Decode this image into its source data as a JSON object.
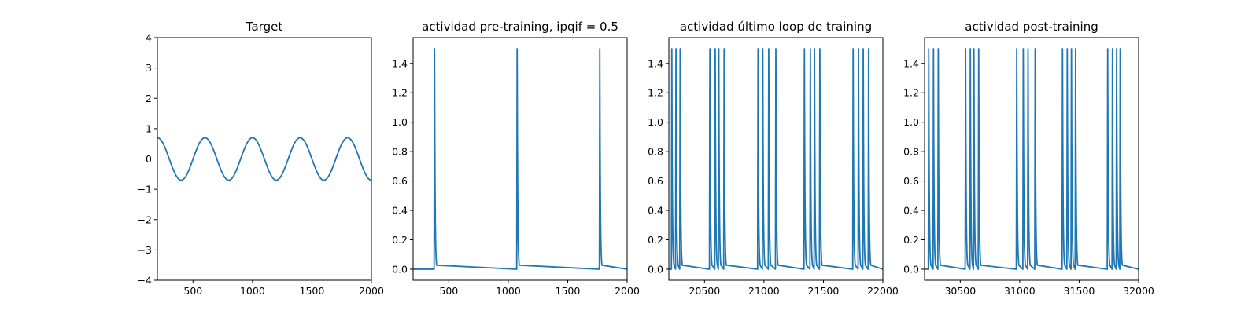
{
  "chart_data": [
    {
      "type": "line",
      "title": "Target",
      "xlim": [
        200,
        2000
      ],
      "ylim": [
        -4,
        4
      ],
      "xticks": [
        500,
        1000,
        1500,
        2000
      ],
      "yticks": [
        -4,
        -3,
        -2,
        -1,
        0,
        1,
        2,
        3,
        4
      ],
      "series": [
        {
          "kind": "cosine",
          "amplitude": 0.7,
          "period": 400,
          "peak_at": 200,
          "x_start": 200,
          "x_end": 2000
        }
      ]
    },
    {
      "type": "line",
      "title": "actividad pre-training, ipqif = 0.5",
      "xlim": [
        200,
        2000
      ],
      "ylim": [
        -0.075,
        1.575
      ],
      "xticks": [
        500,
        1000,
        1500,
        2000
      ],
      "yticks": [
        0.0,
        0.2,
        0.4,
        0.6,
        0.8,
        1.0,
        1.2,
        1.4
      ],
      "series": [
        {
          "kind": "spikes",
          "baseline": 0.0,
          "peak": 1.5,
          "spike_times": [
            380,
            1075,
            1770
          ]
        }
      ]
    },
    {
      "type": "line",
      "title": "actividad último loop de training",
      "xlim": [
        20200,
        22000
      ],
      "ylim": [
        -0.075,
        1.575
      ],
      "xticks": [
        20500,
        21000,
        21500,
        22000
      ],
      "yticks": [
        0.0,
        0.2,
        0.4,
        0.6,
        0.8,
        1.0,
        1.2,
        1.4
      ],
      "series": [
        {
          "kind": "spikes",
          "baseline": 0.0,
          "peak": 1.5,
          "spike_times": [
            20225,
            20260,
            20295,
            20545,
            20590,
            20620,
            20665,
            20950,
            20990,
            21040,
            21100,
            21340,
            21390,
            21425,
            21470,
            21750,
            21795,
            21835,
            21880
          ]
        }
      ]
    },
    {
      "type": "line",
      "title": "actividad post-training",
      "xlim": [
        30200,
        32000
      ],
      "ylim": [
        -0.075,
        1.575
      ],
      "xticks": [
        30500,
        31000,
        31500,
        32000
      ],
      "yticks": [
        0.0,
        0.2,
        0.4,
        0.6,
        0.8,
        1.0,
        1.2,
        1.4
      ],
      "series": [
        {
          "kind": "spikes",
          "baseline": 0.0,
          "peak": 1.5,
          "spike_times": [
            30235,
            30275,
            30315,
            30545,
            30585,
            30615,
            30655,
            30975,
            31030,
            31070,
            31130,
            31360,
            31400,
            31435,
            31470,
            31740,
            31780,
            31815,
            31845
          ]
        }
      ]
    }
  ]
}
